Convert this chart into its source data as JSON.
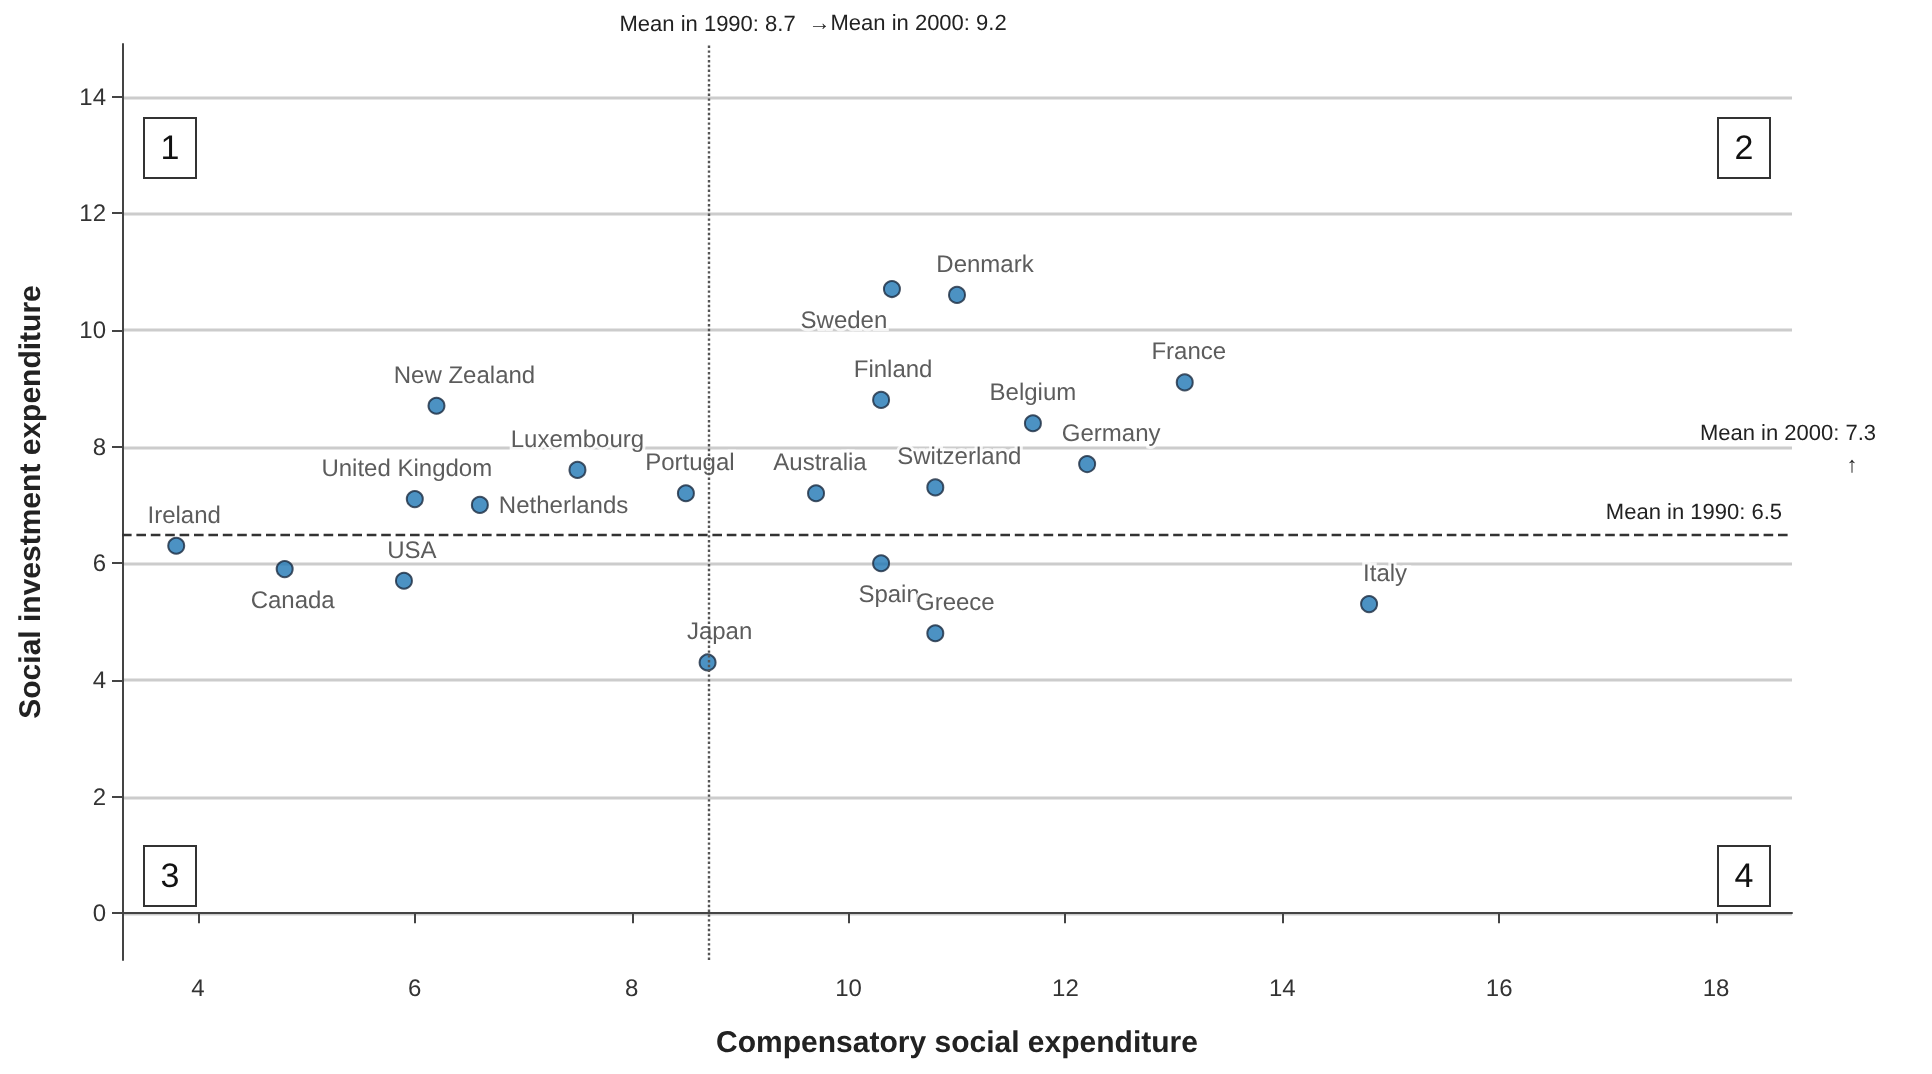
{
  "chart_data": {
    "type": "scatter",
    "xlabel": "Compensatory social expenditure",
    "ylabel": "Social investment expenditure",
    "xlim": [
      3.3,
      18.7
    ],
    "ylim": [
      -0.8,
      14.9
    ],
    "xticks": [
      4,
      6,
      8,
      10,
      12,
      14,
      16,
      18
    ],
    "yticks": [
      0,
      2,
      4,
      6,
      8,
      10,
      12,
      14
    ],
    "grid": "y",
    "legend": false,
    "marker": "circle",
    "series": [
      {
        "name": "Ireland",
        "color": "#1f77b4",
        "x": [
          3.8
        ],
        "values": [
          6.3
        ]
      },
      {
        "name": "Canada",
        "color": "#1f77b4",
        "x": [
          4.8
        ],
        "values": [
          5.9
        ]
      },
      {
        "name": "USA",
        "color": "#1f77b4",
        "x": [
          5.9
        ],
        "values": [
          5.7
        ]
      },
      {
        "name": "United Kingdom",
        "color": "#1f77b4",
        "x": [
          6.0
        ],
        "values": [
          7.1
        ]
      },
      {
        "name": "Netherlands",
        "color": "#1f77b4",
        "x": [
          6.6
        ],
        "values": [
          7.0
        ]
      },
      {
        "name": "New Zealand",
        "color": "#1f77b4",
        "x": [
          6.2
        ],
        "values": [
          8.7
        ]
      },
      {
        "name": "Luxembourg",
        "color": "#1f77b4",
        "x": [
          7.5
        ],
        "values": [
          7.6
        ]
      },
      {
        "name": "Portugal",
        "color": "#1f77b4",
        "x": [
          8.5
        ],
        "values": [
          7.2
        ]
      },
      {
        "name": "Japan",
        "color": "#1f77b4",
        "x": [
          8.7
        ],
        "values": [
          4.3
        ]
      },
      {
        "name": "Australia",
        "color": "#1f77b4",
        "x": [
          9.7
        ],
        "values": [
          7.2
        ]
      },
      {
        "name": "Finland",
        "color": "#1f77b4",
        "x": [
          10.3
        ],
        "values": [
          8.8
        ]
      },
      {
        "name": "Spain",
        "color": "#1f77b4",
        "x": [
          10.3
        ],
        "values": [
          6.0
        ]
      },
      {
        "name": "Switzerland",
        "color": "#1f77b4",
        "x": [
          10.8
        ],
        "values": [
          7.3
        ]
      },
      {
        "name": "Greece",
        "color": "#1f77b4",
        "x": [
          10.8
        ],
        "values": [
          4.8
        ]
      },
      {
        "name": "Sweden",
        "color": "#1f77b4",
        "x": [
          10.4
        ],
        "values": [
          10.7
        ]
      },
      {
        "name": "Denmark",
        "color": "#1f77b4",
        "x": [
          11.0
        ],
        "values": [
          10.6
        ]
      },
      {
        "name": "Belgium",
        "color": "#1f77b4",
        "x": [
          11.7
        ],
        "values": [
          8.4
        ]
      },
      {
        "name": "Germany",
        "color": "#1f77b4",
        "x": [
          12.2
        ],
        "values": [
          7.7
        ]
      },
      {
        "name": "France",
        "color": "#1f77b4",
        "x": [
          13.1
        ],
        "values": [
          9.1
        ]
      },
      {
        "name": "Italy",
        "color": "#1f77b4",
        "x": [
          14.8
        ],
        "values": [
          5.3
        ]
      }
    ],
    "ref_lines": [
      {
        "axis": "x",
        "value": 8.7,
        "label": "Mean in 1990: 8.7",
        "line_style": "dotted",
        "color": "#555555"
      },
      {
        "axis": "y",
        "value": 6.5,
        "label": "Mean in 1990: 6.5",
        "line_style": "dashed",
        "color": "#333333"
      }
    ],
    "annotations": [
      "1",
      "2",
      "3",
      "4",
      "→Mean in 2000: 9.2",
      "Mean in 2000: 7.3",
      "↑"
    ]
  }
}
